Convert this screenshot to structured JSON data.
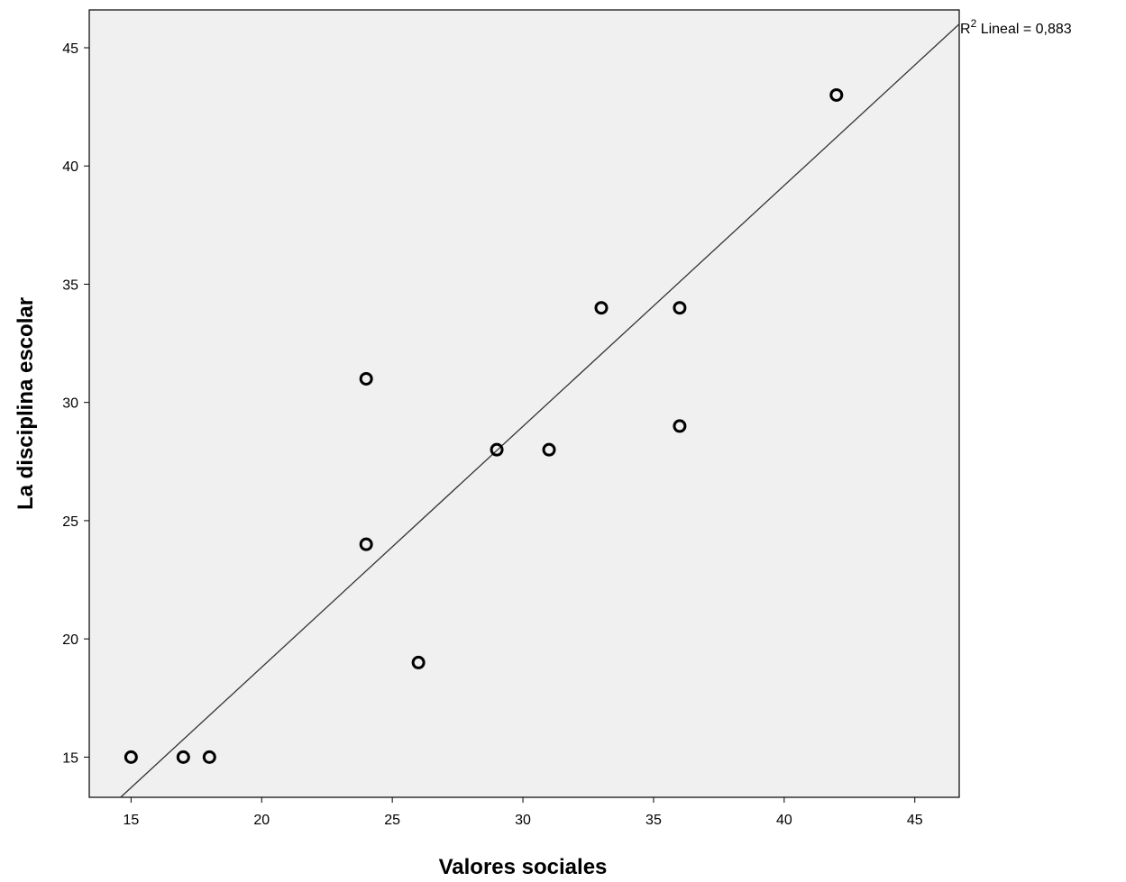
{
  "chart_data": {
    "type": "scatter",
    "xlabel": "Valores sociales",
    "ylabel": "La disciplina escolar",
    "xlim": [
      13.4,
      46.7
    ],
    "ylim": [
      13.3,
      46.6
    ],
    "x_ticks": [
      15,
      20,
      25,
      30,
      35,
      40,
      45
    ],
    "y_ticks": [
      15,
      20,
      25,
      30,
      35,
      40,
      45
    ],
    "grid": false,
    "plot_background": "#f0f0f0",
    "marker": "open-circle",
    "points": [
      {
        "x": 15,
        "y": 15
      },
      {
        "x": 17,
        "y": 15
      },
      {
        "x": 18,
        "y": 15
      },
      {
        "x": 24,
        "y": 31
      },
      {
        "x": 24,
        "y": 24
      },
      {
        "x": 26,
        "y": 19
      },
      {
        "x": 29,
        "y": 28
      },
      {
        "x": 31,
        "y": 28
      },
      {
        "x": 33,
        "y": 34
      },
      {
        "x": 36,
        "y": 34
      },
      {
        "x": 36,
        "y": 29
      },
      {
        "x": 42,
        "y": 43
      }
    ],
    "fit_line": {
      "type": "linear",
      "x": [
        14.6,
        46.7
      ],
      "y": [
        13.3,
        46.0
      ]
    },
    "annotation": {
      "prefix": "R",
      "superscript": "2",
      "text": " Lineal = 0,883"
    }
  }
}
